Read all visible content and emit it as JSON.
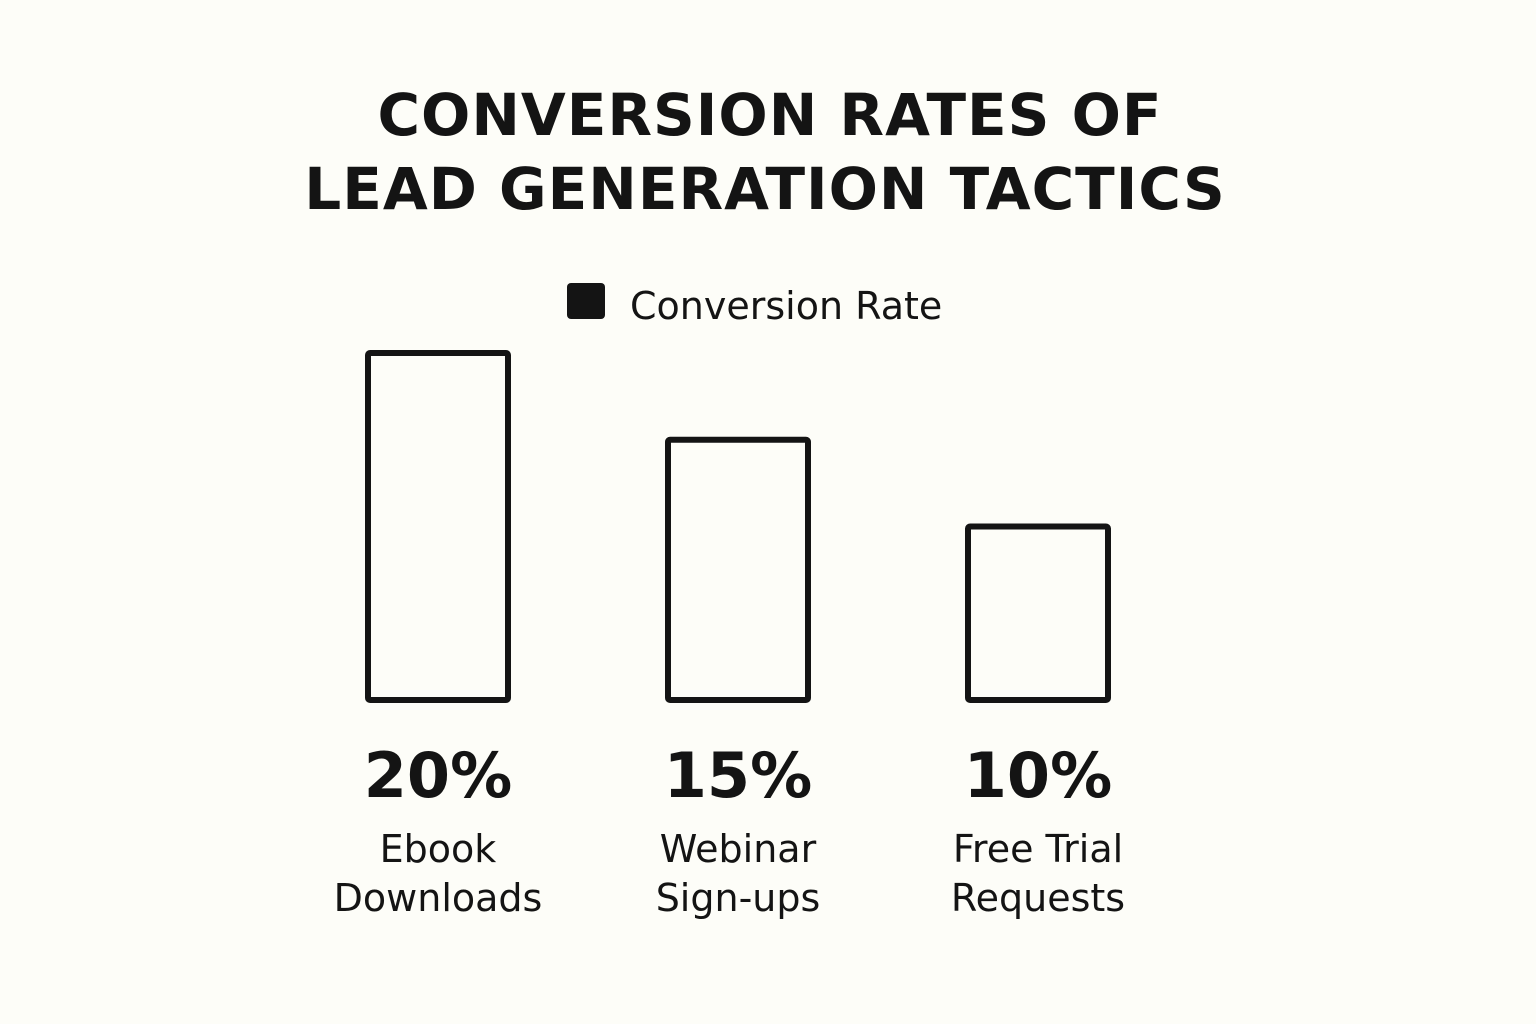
{
  "chart_data": {
    "type": "bar",
    "title_lines": [
      "CONVERSION RATES OF",
      "LEAD GENERATION TACTICS"
    ],
    "legend": [
      {
        "label": "Conversion Rate",
        "color": "#141414"
      }
    ],
    "legend_position": "top-center",
    "series": [
      {
        "name": "Conversion Rate",
        "values": [
          20,
          15,
          10
        ]
      }
    ],
    "categories": [
      {
        "lines": [
          "Ebook",
          "Downloads"
        ]
      },
      {
        "lines": [
          "Webinar",
          "Sign-ups"
        ]
      },
      {
        "lines": [
          "Free Trial",
          "Requests"
        ]
      }
    ],
    "value_labels": [
      "20%",
      "15%",
      "10%"
    ],
    "unit": "%",
    "ylim": [
      0,
      20
    ],
    "grid": false,
    "xlabel": "",
    "ylabel": "",
    "colors": {
      "ink": "#141414",
      "background": "#fdfdf8"
    }
  }
}
